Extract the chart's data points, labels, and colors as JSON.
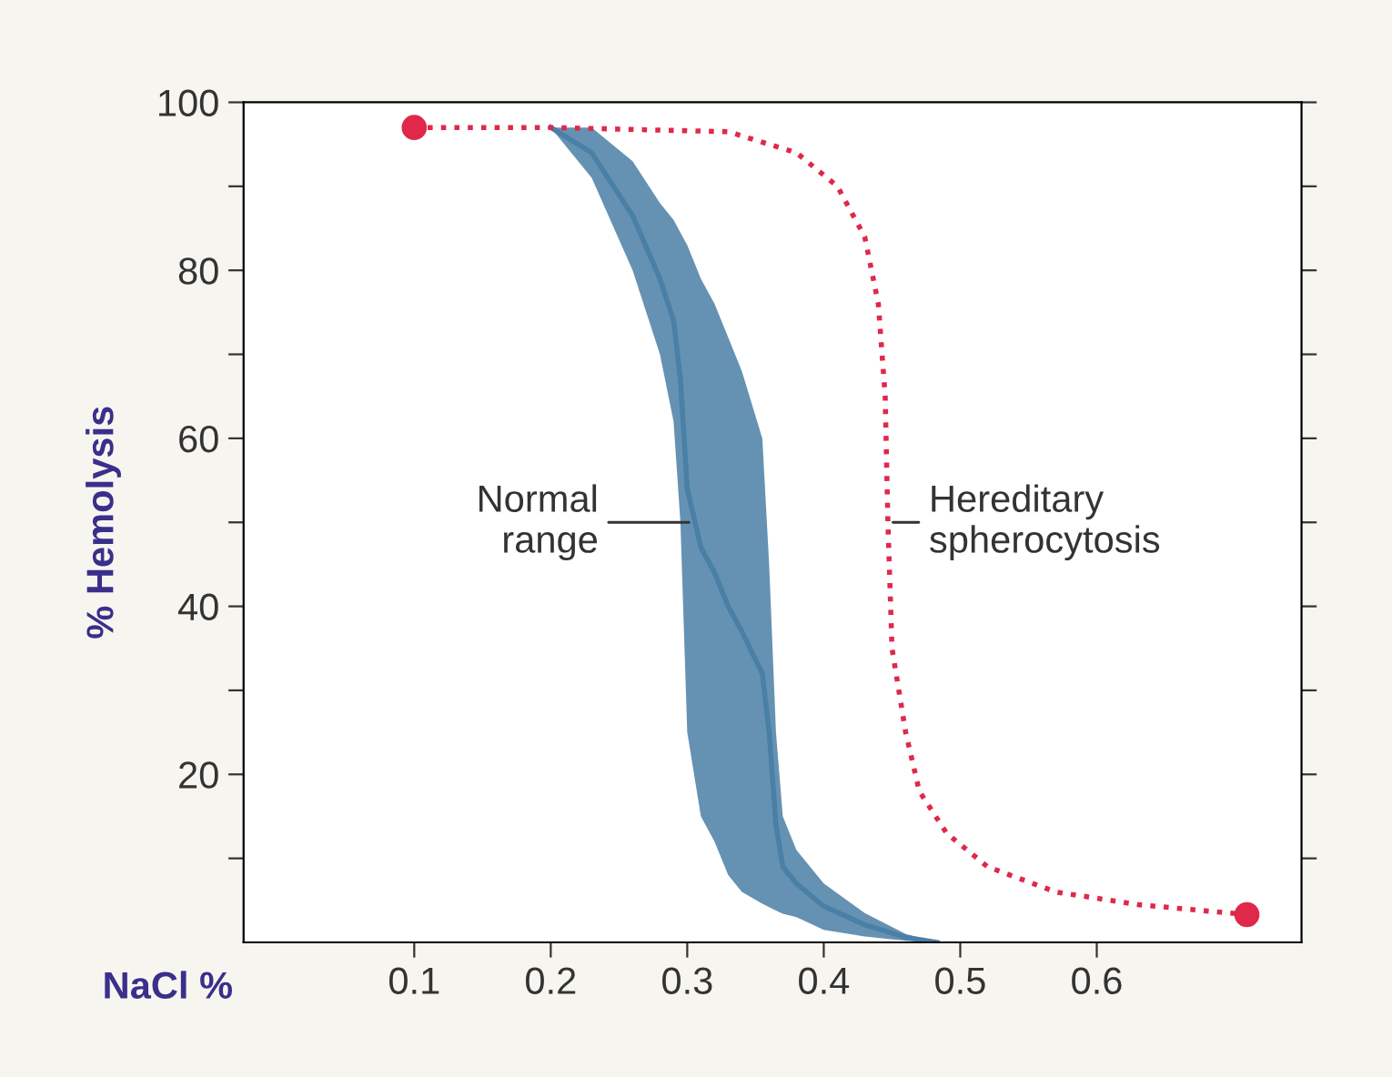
{
  "chart_data": {
    "type": "line",
    "xlabel": "NaCl %",
    "ylabel": "% Hemolysis",
    "xlim": [
      -0.025,
      0.75
    ],
    "ylim": [
      0,
      100
    ],
    "xticks": [
      0.1,
      0.2,
      0.3,
      0.4,
      0.5,
      0.6
    ],
    "yticks": [
      {
        "value": 10,
        "label": null
      },
      20,
      {
        "value": 30,
        "label": null
      },
      40,
      {
        "value": 50,
        "label": null
      },
      60,
      {
        "value": 70,
        "label": null
      },
      80,
      {
        "value": 90,
        "label": null
      },
      100
    ],
    "grid": false,
    "legend": false,
    "series": [
      {
        "color": "#4a7fa6",
        "x": [
          0.2,
          0.23,
          0.26,
          0.28,
          0.29,
          0.295,
          0.3,
          0.31,
          0.32,
          0.33,
          0.34,
          0.355,
          0.36,
          0.365,
          0.37,
          0.38,
          0.4,
          0.43,
          0.46,
          0.483
        ],
        "values": [
          97,
          94,
          86.5,
          79,
          74,
          67,
          54,
          47,
          44,
          40,
          37,
          32,
          25,
          14,
          9,
          7,
          4.3,
          2.1,
          0.6,
          0
        ],
        "lower": [
          97,
          91,
          80,
          70,
          62,
          50,
          25,
          15,
          12,
          8,
          6,
          4.6,
          4.2,
          3.8,
          3.4,
          3,
          1.5,
          0.7,
          0.2,
          0
        ],
        "upper": [
          97,
          97,
          93,
          88,
          86,
          84.5,
          83,
          79,
          76,
          72,
          68,
          60,
          45,
          25,
          15,
          11,
          7,
          3.5,
          1,
          0
        ]
      },
      {
        "type": "scatter",
        "color": "#e0284a",
        "marker": "circle",
        "x": [
          0.1,
          0.71
        ],
        "values": [
          97,
          3.3
        ]
      },
      {
        "type": "line",
        "color": "#e0284a",
        "line_style": "dotted",
        "x": [
          0.1,
          0.2,
          0.33,
          0.38,
          0.41,
          0.43,
          0.44,
          0.445,
          0.447,
          0.45,
          0.46,
          0.47,
          0.49,
          0.52,
          0.57,
          0.63,
          0.71
        ],
        "values": [
          97,
          97,
          96.5,
          94,
          90,
          84,
          76,
          65,
          50,
          35,
          25,
          18,
          13,
          9,
          6,
          4.5,
          3.3
        ]
      }
    ],
    "annotations": [
      {
        "text": "Normal\nrange",
        "x": 0.305,
        "y": 50
      },
      {
        "text": "Hereditary\nspherocytosis",
        "x": 0.447,
        "y": 50
      }
    ]
  }
}
